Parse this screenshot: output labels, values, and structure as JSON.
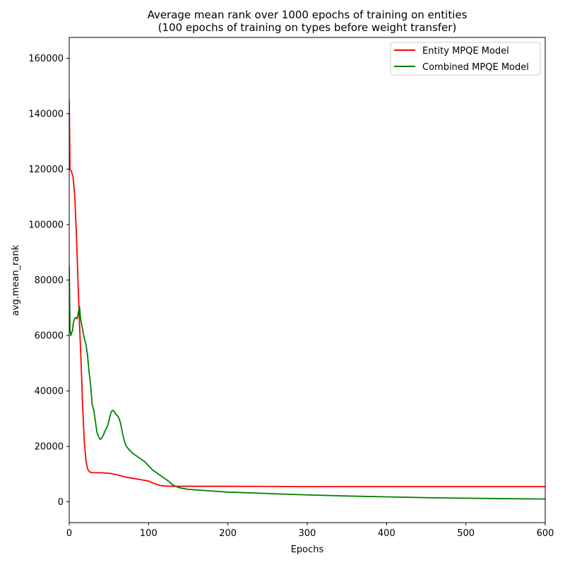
{
  "chart_data": {
    "type": "line",
    "title_line1": "Average mean rank over 1000 epochs of training on entities",
    "title_line2": "(100 epochs of training on types before weight transfer)",
    "xlabel": "Epochs",
    "ylabel": "avg.mean_rank",
    "xlim": [
      0,
      600
    ],
    "ylim": [
      -7500,
      167500
    ],
    "xticks": [
      0,
      100,
      200,
      300,
      400,
      500,
      600
    ],
    "yticks": [
      0,
      20000,
      40000,
      60000,
      80000,
      100000,
      120000,
      140000,
      160000
    ],
    "legend_position": "upper-right",
    "series": [
      {
        "name": "Entity MPQE Model",
        "color": "#ff0000",
        "x": [
          0,
          1,
          3,
          5,
          7,
          9,
          11,
          13,
          15,
          17,
          19,
          21,
          23,
          25,
          27,
          30,
          35,
          40,
          50,
          60,
          70,
          80,
          90,
          100,
          105,
          110,
          115,
          120,
          130,
          150,
          200,
          300,
          400,
          500,
          600
        ],
        "y": [
          145000,
          120000,
          119000,
          117000,
          110000,
          97000,
          80000,
          64000,
          50000,
          34000,
          22000,
          15000,
          12000,
          11000,
          10600,
          10500,
          10500,
          10500,
          10300,
          9800,
          9000,
          8500,
          8000,
          7500,
          6800,
          6300,
          5900,
          5700,
          5600,
          5600,
          5600,
          5500,
          5500,
          5500,
          5500
        ]
      },
      {
        "name": "Combined MPQE Model",
        "color": "#008000",
        "x": [
          0,
          1,
          2,
          3,
          4,
          5,
          6,
          8,
          10,
          12,
          13,
          14,
          15,
          17,
          19,
          21,
          23,
          25,
          27,
          29,
          31,
          33,
          35,
          37,
          39,
          41,
          43,
          45,
          47,
          49,
          51,
          53,
          55,
          57,
          59,
          61,
          63,
          65,
          67,
          69,
          70,
          72,
          75,
          80,
          85,
          90,
          95,
          100,
          105,
          110,
          115,
          120,
          125,
          130,
          135,
          140,
          150,
          175,
          200,
          250,
          300,
          350,
          400,
          450,
          500,
          550,
          600
        ],
        "y": [
          85000,
          62000,
          60000,
          61000,
          61500,
          64000,
          65500,
          66500,
          66000,
          69000,
          70500,
          67000,
          65000,
          62000,
          59000,
          57000,
          53000,
          47000,
          42000,
          35000,
          33000,
          29000,
          25000,
          23500,
          22500,
          23000,
          24000,
          25500,
          26500,
          28000,
          30500,
          32500,
          33000,
          32500,
          31500,
          31000,
          30000,
          28000,
          25000,
          22500,
          21500,
          20000,
          19000,
          17500,
          16500,
          15500,
          14500,
          13000,
          11500,
          10500,
          9500,
          8500,
          7500,
          6200,
          5500,
          5000,
          4500,
          4000,
          3500,
          3000,
          2500,
          2100,
          1800,
          1500,
          1300,
          1150,
          1000
        ]
      }
    ]
  }
}
